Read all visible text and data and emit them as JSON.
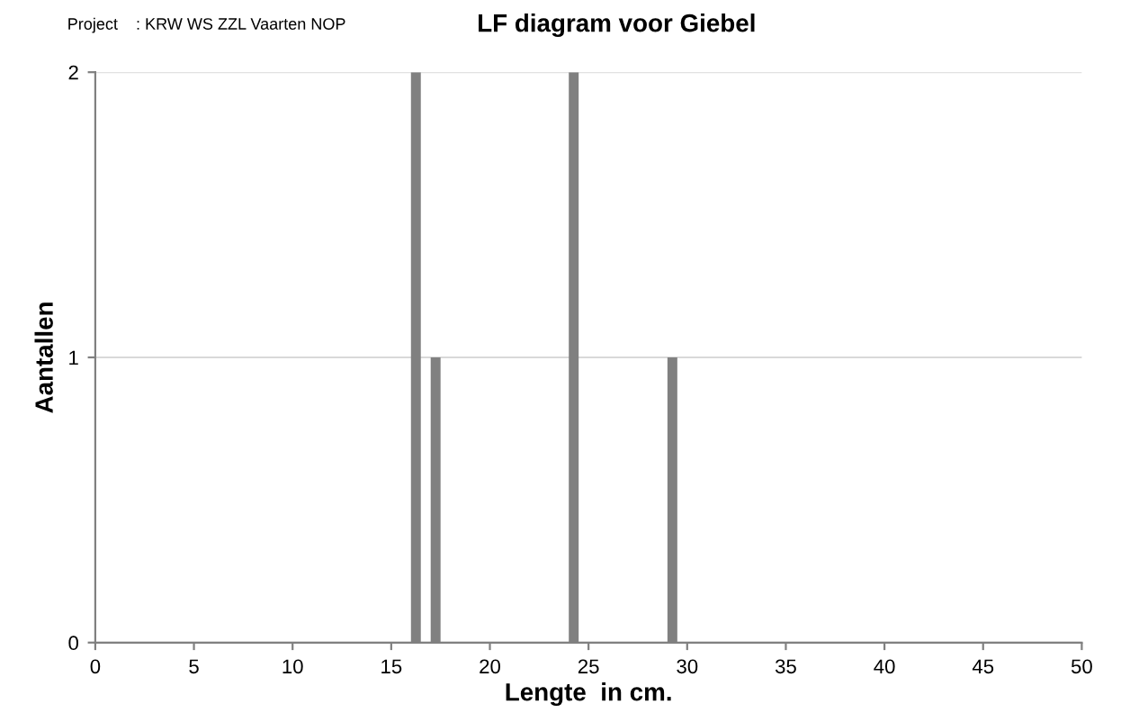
{
  "chart_data": {
    "type": "bar",
    "title": "LF diagram voor Giebel",
    "xlabel": "Lengte  in cm.",
    "ylabel": "Aantallen",
    "annotations": [
      "Project    : KRW WS ZZL Vaarten NOP"
    ],
    "x": [
      16,
      17,
      24,
      29
    ],
    "series": [
      {
        "color": "#808080",
        "values": [
          2,
          1,
          2,
          1
        ]
      }
    ],
    "xlim": [
      0,
      50
    ],
    "xticks": [
      0,
      5,
      10,
      15,
      20,
      25,
      30,
      35,
      40,
      45,
      50
    ],
    "ylim": [
      0,
      2
    ],
    "yticks": [
      0,
      1,
      2
    ],
    "grid": "y",
    "legend": false
  }
}
